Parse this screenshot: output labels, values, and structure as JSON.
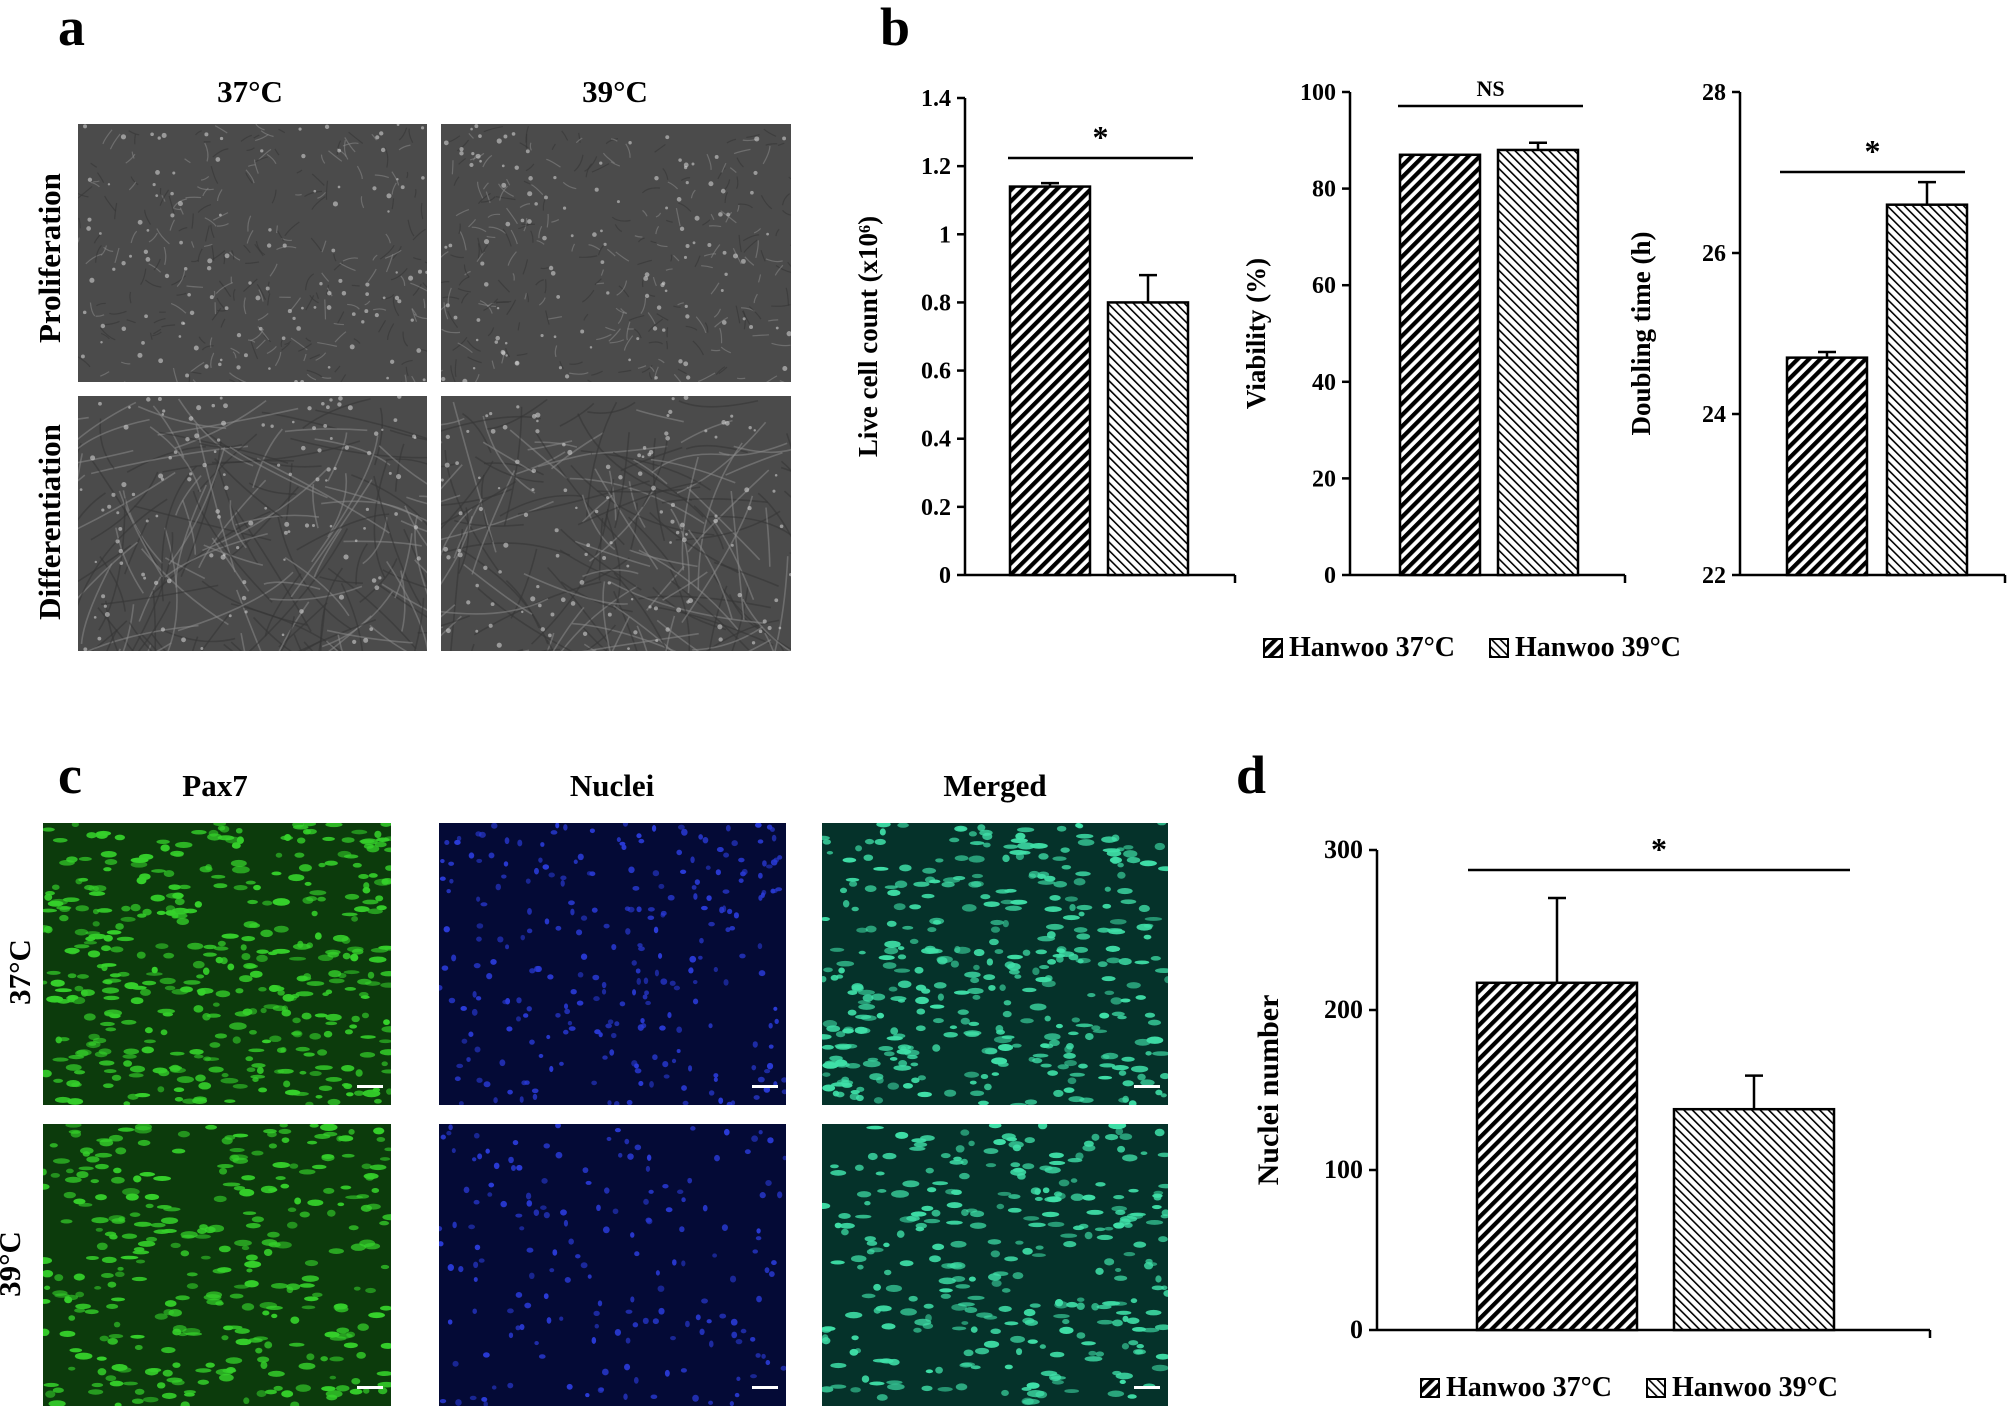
{
  "panels": {
    "a": {
      "letter": "a",
      "columns": [
        "37°C",
        "39°C"
      ],
      "rows": [
        "Proliferation",
        "Differentiation"
      ]
    },
    "b": {
      "letter": "b"
    },
    "c": {
      "letter": "c",
      "columns": [
        "Pax7",
        "Nuclei",
        "Merged"
      ],
      "rows": [
        "37°C",
        "39°C"
      ]
    },
    "d": {
      "letter": "d"
    }
  },
  "legend": {
    "items": [
      "Hanwoo 37°C",
      "Hanwoo 39°C"
    ],
    "hatch_37": "dense diagonal (\\\\)",
    "hatch_39": "fine diagonal (///)"
  },
  "colors": {
    "bar_stroke": "#000000",
    "pax7": "#35d12b",
    "nuclei": "#2a3bd8",
    "merged": "#3fe0a8"
  },
  "chart_data": [
    {
      "type": "bar",
      "panel": "b",
      "categories": [
        "Hanwoo 37°C",
        "Hanwoo 39°C"
      ],
      "values": [
        1.14,
        0.8
      ],
      "errors": [
        0.01,
        0.08
      ],
      "ylabel": "Live cell count (x10⁶)",
      "ylim": [
        0,
        1.4
      ],
      "yticks": [
        "0",
        "0.2",
        "0.4",
        "0.6",
        "0.8",
        "1",
        "1.2",
        "1.4"
      ],
      "significance": "*"
    },
    {
      "type": "bar",
      "panel": "b",
      "categories": [
        "Hanwoo 37°C",
        "Hanwoo 39°C"
      ],
      "values": [
        87,
        88
      ],
      "errors": [
        0,
        1.5
      ],
      "ylabel": "Viability (%)",
      "ylim": [
        0,
        100
      ],
      "yticks": [
        "0",
        "20",
        "40",
        "60",
        "80",
        "100"
      ],
      "significance": "NS"
    },
    {
      "type": "bar",
      "panel": "b",
      "categories": [
        "Hanwoo 37°C",
        "Hanwoo 39°C"
      ],
      "values": [
        24.7,
        26.6
      ],
      "errors": [
        0.07,
        0.28
      ],
      "ylabel": "Doubling time (h)",
      "ylim": [
        22,
        28
      ],
      "yticks": [
        "22",
        "24",
        "26",
        "28"
      ],
      "significance": "*"
    },
    {
      "type": "bar",
      "panel": "d",
      "categories": [
        "Hanwoo 37°C",
        "Hanwoo 39°C"
      ],
      "values": [
        217,
        138
      ],
      "errors": [
        53,
        21
      ],
      "ylabel": "Nuclei number",
      "ylim": [
        0,
        300
      ],
      "yticks": [
        "0",
        "100",
        "200",
        "300"
      ],
      "significance": "*"
    }
  ]
}
